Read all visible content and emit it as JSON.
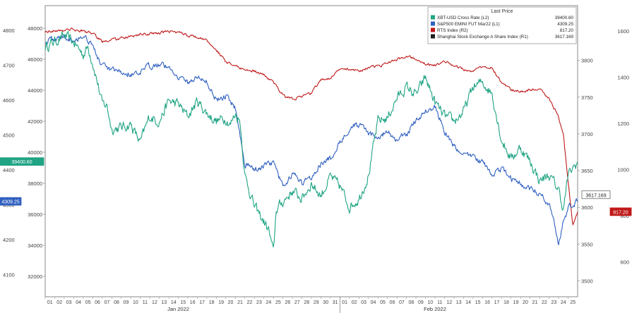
{
  "chart_data": {
    "type": "line",
    "title": "",
    "legend": {
      "header": "Last Price",
      "placement": "top-right",
      "entries": [
        {
          "label": "XBT-USD Cross Rate  (L2)",
          "value": "39400.60",
          "color": "#20a484"
        },
        {
          "label": "S&P500 EMINI FUT Mar22  (L1)",
          "value": "4309.25",
          "color": "#3060c0"
        },
        {
          "label": "RTS Index  (R2)",
          "value": "817.20",
          "color": "#c01818"
        },
        {
          "label": "Shanghai Stock Exchange A Share Index  (R1)",
          "value": "3617.169",
          "color": "#202020"
        }
      ]
    },
    "x_axis": {
      "days": [
        "01",
        "02",
        "03",
        "04",
        "05",
        "06",
        "07",
        "08",
        "09",
        "10",
        "11",
        "12",
        "13",
        "14",
        "15",
        "16",
        "17",
        "18",
        "19",
        "20",
        "21",
        "22",
        "23",
        "24",
        "25",
        "26",
        "27",
        "28",
        "29",
        "30",
        "31",
        "01",
        "02",
        "03",
        "04",
        "05",
        "06",
        "07",
        "08",
        "09",
        "10",
        "11",
        "12",
        "13",
        "14",
        "15",
        "16",
        "17",
        "18",
        "19",
        "20",
        "21",
        "22",
        "23",
        "24",
        "25"
      ],
      "months": [
        {
          "label": "Jan 2022",
          "center_day": 14
        },
        {
          "label": "Feb 2022",
          "center_day": 41
        }
      ],
      "range": [
        0,
        56
      ]
    },
    "axes": {
      "L1": {
        "range": [
          4050,
          4850
        ],
        "ticks": [
          "4100",
          "4200",
          "4300",
          "4400",
          "4500",
          "4600",
          "4700",
          "4800"
        ],
        "badge": "4309.25"
      },
      "L2": {
        "range": [
          31000,
          49000
        ],
        "ticks": [
          "32000",
          "34000",
          "36000",
          "38000",
          "40000",
          "42000",
          "44000",
          "46000",
          "48000"
        ],
        "badge": "39400.60"
      },
      "R1": {
        "range": [
          3485,
          3865
        ],
        "ticks": [
          "3500",
          "3550",
          "3600",
          "3650",
          "3700",
          "3750",
          "3800"
        ],
        "badge": "3617.169"
      },
      "R2": {
        "range": [
          470,
          1680
        ],
        "ticks": [
          "600",
          "800",
          "1000",
          "1200",
          "1400",
          "1600"
        ],
        "badge": "817.20"
      }
    },
    "series": [
      {
        "name": "XBT-USD Cross Rate",
        "axis": "L2",
        "color": "#20a484",
        "noise": 350,
        "points": [
          [
            0,
            46800
          ],
          [
            2,
            47500
          ],
          [
            3,
            47100
          ],
          [
            4,
            46300
          ],
          [
            4.5,
            46800
          ],
          [
            5,
            45800
          ],
          [
            5.5,
            44500
          ],
          [
            6,
            43100
          ],
          [
            6.5,
            43000
          ],
          [
            7,
            41500
          ],
          [
            8,
            41600
          ],
          [
            9,
            41800
          ],
          [
            10,
            40600
          ],
          [
            10.5,
            41500
          ],
          [
            11,
            42300
          ],
          [
            12,
            42000
          ],
          [
            13,
            43300
          ],
          [
            14,
            43100
          ],
          [
            15,
            42300
          ],
          [
            16,
            43300
          ],
          [
            17,
            42500
          ],
          [
            18,
            42000
          ],
          [
            19,
            42200
          ],
          [
            19.5,
            41800
          ],
          [
            20,
            42500
          ],
          [
            20.5,
            42000
          ],
          [
            21,
            38500
          ],
          [
            22,
            36500
          ],
          [
            23,
            35500
          ],
          [
            23.5,
            35000
          ],
          [
            24,
            33500
          ],
          [
            24.3,
            36300
          ],
          [
            25,
            36800
          ],
          [
            26,
            37500
          ],
          [
            27,
            37000
          ],
          [
            28,
            38000
          ],
          [
            29,
            37200
          ],
          [
            30,
            38400
          ],
          [
            31,
            37800
          ],
          [
            32,
            36500
          ],
          [
            33,
            37000
          ],
          [
            34,
            38500
          ],
          [
            35,
            42000
          ],
          [
            36,
            42200
          ],
          [
            37,
            43500
          ],
          [
            38,
            44200
          ],
          [
            39,
            43700
          ],
          [
            40,
            44800
          ],
          [
            41,
            43200
          ],
          [
            42,
            42300
          ],
          [
            43,
            42000
          ],
          [
            44,
            42600
          ],
          [
            45,
            44200
          ],
          [
            46,
            44500
          ],
          [
            47,
            43800
          ],
          [
            48,
            40800
          ],
          [
            49,
            39600
          ],
          [
            50,
            40300
          ],
          [
            51,
            39400
          ],
          [
            52,
            38200
          ],
          [
            53,
            38500
          ],
          [
            54,
            37600
          ],
          [
            54.5,
            36300
          ],
          [
            55,
            38500
          ],
          [
            56,
            39400
          ]
        ]
      },
      {
        "name": "S&P500 EMINI FUT Mar22",
        "axis": "L1",
        "color": "#3060c0",
        "noise": 9,
        "points": [
          [
            0,
            4768
          ],
          [
            2,
            4782
          ],
          [
            3,
            4773
          ],
          [
            4,
            4785
          ],
          [
            5,
            4760
          ],
          [
            5.5,
            4720
          ],
          [
            6,
            4700
          ],
          [
            6.5,
            4688
          ],
          [
            7,
            4684
          ],
          [
            8,
            4678
          ],
          [
            9,
            4675
          ],
          [
            10,
            4672
          ],
          [
            10.5,
            4690
          ],
          [
            11,
            4698
          ],
          [
            12,
            4705
          ],
          [
            13,
            4692
          ],
          [
            14,
            4668
          ],
          [
            15,
            4650
          ],
          [
            16,
            4665
          ],
          [
            17,
            4652
          ],
          [
            18,
            4600
          ],
          [
            19,
            4610
          ],
          [
            20,
            4578
          ],
          [
            21,
            4420
          ],
          [
            22,
            4400
          ],
          [
            23,
            4410
          ],
          [
            24,
            4420
          ],
          [
            25,
            4350
          ],
          [
            26,
            4390
          ],
          [
            27,
            4360
          ],
          [
            28,
            4380
          ],
          [
            29,
            4420
          ],
          [
            30,
            4430
          ],
          [
            31,
            4480
          ],
          [
            32,
            4520
          ],
          [
            33,
            4530
          ],
          [
            34,
            4500
          ],
          [
            35,
            4495
          ],
          [
            36,
            4508
          ],
          [
            37,
            4485
          ],
          [
            38,
            4500
          ],
          [
            39,
            4540
          ],
          [
            40,
            4570
          ],
          [
            41,
            4580
          ],
          [
            42,
            4510
          ],
          [
            43,
            4470
          ],
          [
            44,
            4440
          ],
          [
            45,
            4440
          ],
          [
            46,
            4420
          ],
          [
            47,
            4390
          ],
          [
            48,
            4400
          ],
          [
            49,
            4375
          ],
          [
            50,
            4360
          ],
          [
            51,
            4345
          ],
          [
            52,
            4330
          ],
          [
            53,
            4300
          ],
          [
            53.5,
            4260
          ],
          [
            54,
            4180
          ],
          [
            54.5,
            4250
          ],
          [
            55,
            4290
          ],
          [
            56,
            4309
          ]
        ]
      },
      {
        "name": "RTS Index",
        "axis": "R2",
        "color": "#c01818",
        "noise": 6,
        "points": [
          [
            0,
            1598
          ],
          [
            2,
            1605
          ],
          [
            3,
            1608
          ],
          [
            4,
            1600
          ],
          [
            5,
            1590
          ],
          [
            6,
            1555
          ],
          [
            7,
            1562
          ],
          [
            8,
            1568
          ],
          [
            9,
            1575
          ],
          [
            10,
            1585
          ],
          [
            11,
            1588
          ],
          [
            12,
            1592
          ],
          [
            13,
            1600
          ],
          [
            14,
            1595
          ],
          [
            15,
            1582
          ],
          [
            16,
            1575
          ],
          [
            17,
            1558
          ],
          [
            18,
            1520
          ],
          [
            19,
            1465
          ],
          [
            20,
            1448
          ],
          [
            21,
            1435
          ],
          [
            22,
            1425
          ],
          [
            23,
            1410
          ],
          [
            24,
            1378
          ],
          [
            25,
            1322
          ],
          [
            26,
            1305
          ],
          [
            27,
            1318
          ],
          [
            28,
            1330
          ],
          [
            29,
            1390
          ],
          [
            30,
            1398
          ],
          [
            31,
            1432
          ],
          [
            32,
            1436
          ],
          [
            33,
            1428
          ],
          [
            34,
            1440
          ],
          [
            35,
            1448
          ],
          [
            36,
            1460
          ],
          [
            37,
            1478
          ],
          [
            38,
            1492
          ],
          [
            39,
            1484
          ],
          [
            40,
            1460
          ],
          [
            41,
            1452
          ],
          [
            42,
            1468
          ],
          [
            43,
            1452
          ],
          [
            44,
            1436
          ],
          [
            45,
            1425
          ],
          [
            46,
            1448
          ],
          [
            47,
            1440
          ],
          [
            48,
            1380
          ],
          [
            49,
            1345
          ],
          [
            50,
            1338
          ],
          [
            51,
            1345
          ],
          [
            52,
            1352
          ],
          [
            53,
            1310
          ],
          [
            54,
            1230
          ],
          [
            54.5,
            1150
          ],
          [
            55,
            950
          ],
          [
            55.5,
            760
          ],
          [
            56,
            817
          ]
        ]
      },
      {
        "name": "Shanghai Stock Exchange A Share Index",
        "axis": "R1",
        "color": "#202020",
        "noise": 0,
        "points": []
      }
    ],
    "grid": false
  }
}
